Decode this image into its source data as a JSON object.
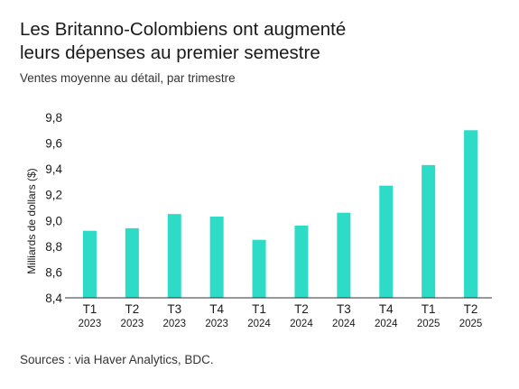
{
  "header": {
    "title_line1": "Les Britanno-Colombiens ont augmenté",
    "title_line2": "leurs dépenses au premier semestre",
    "subtitle": "Ventes moyenne au détail, par trimestre"
  },
  "footer": {
    "source": "Sources : via Haver Analytics, BDC."
  },
  "colors": {
    "bar": "#2ddbc6",
    "axis": "#333333",
    "text": "#1a1a1a"
  },
  "chart_data": {
    "type": "bar",
    "categories": [
      "T1 2023",
      "T2 2023",
      "T3 2023",
      "T4 2023",
      "T1 2024",
      "T2 2024",
      "T3 2024",
      "T4 2024",
      "T1 2025",
      "T2 2025"
    ],
    "category_labels": [
      {
        "q": "T1",
        "y": "2023"
      },
      {
        "q": "T2",
        "y": "2023"
      },
      {
        "q": "T3",
        "y": "2023"
      },
      {
        "q": "T4",
        "y": "2023"
      },
      {
        "q": "T1",
        "y": "2024"
      },
      {
        "q": "T2",
        "y": "2024"
      },
      {
        "q": "T3",
        "y": "2024"
      },
      {
        "q": "T4",
        "y": "2024"
      },
      {
        "q": "T1",
        "y": "2025"
      },
      {
        "q": "T2",
        "y": "2025"
      }
    ],
    "values": [
      8.92,
      8.94,
      9.05,
      9.03,
      8.85,
      8.96,
      9.06,
      9.27,
      9.43,
      9.7
    ],
    "ylabel": "Milliards de dollars ($)",
    "ylim": [
      8.4,
      9.8
    ],
    "yticks": [
      "8,4",
      "8,6",
      "8,8",
      "9,0",
      "9,2",
      "9,4",
      "9,6",
      "9,8"
    ],
    "yticks_values": [
      8.4,
      8.6,
      8.8,
      9.0,
      9.2,
      9.4,
      9.6,
      9.8
    ],
    "grid": false,
    "legend": "none"
  }
}
